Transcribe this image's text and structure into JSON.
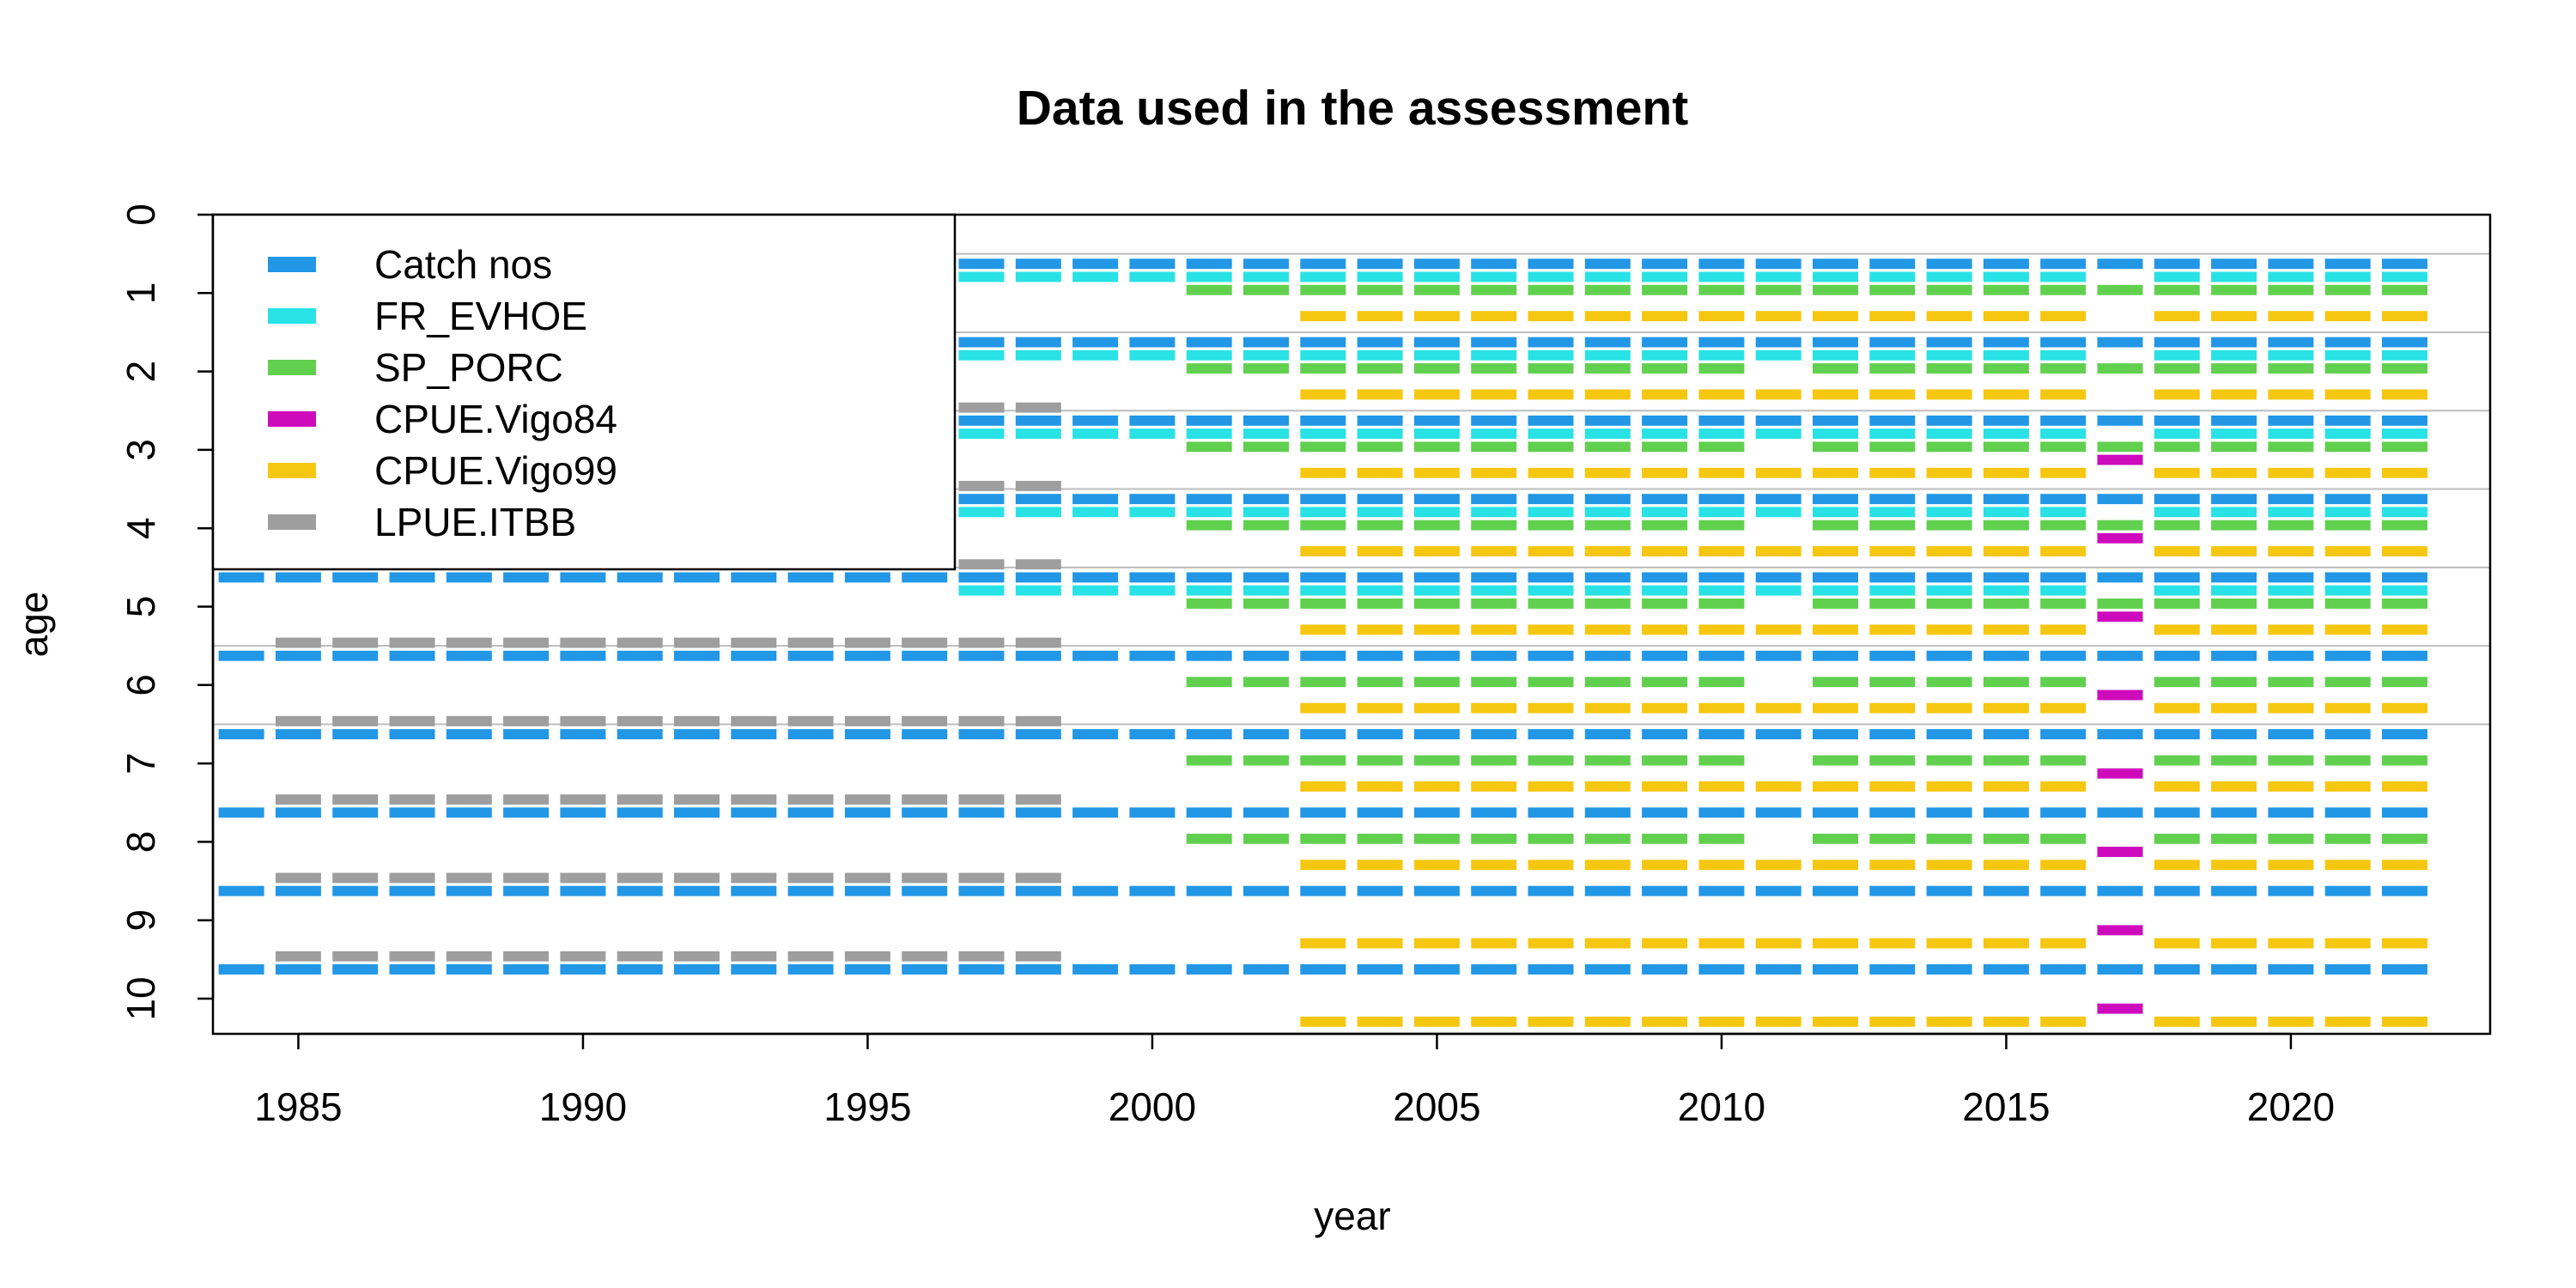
{
  "chart_data": {
    "type": "heatmap",
    "title": "Data used in the assessment",
    "xlabel": "year",
    "ylabel": "age",
    "xlim": [
      1983.5,
      2023.5
    ],
    "ylim": [
      0,
      10.5
    ],
    "x_ticks": [
      1985,
      1990,
      1995,
      2000,
      2005,
      2010,
      2015,
      2020
    ],
    "y_ticks": [
      0,
      1,
      2,
      3,
      4,
      5,
      6,
      7,
      8,
      9,
      10
    ],
    "legend_position": "top-left",
    "series": [
      {
        "name": "Catch nos",
        "color": "#2297E6",
        "blocks": [
          {
            "years": [
              1984,
              2022
            ],
            "ages": [
              1,
              10
            ]
          },
          {
            "years": [
              1984,
              1995
            ],
            "ages": [
              2,
              4
            ]
          },
          {
            "years": [
              1984,
              1993
            ],
            "ages": [
              1,
              1
            ]
          }
        ],
        "note_hidden_under_legend": false
      },
      {
        "name": "FR_EVHOE",
        "color": "#28E2E5",
        "blocks": [
          {
            "years": [
              1997,
              2016
            ],
            "ages": [
              1,
              5
            ]
          },
          {
            "years": [
              2018,
              2022
            ],
            "ages": [
              1,
              5
            ]
          }
        ]
      },
      {
        "name": "SP_PORC",
        "color": "#61D04F",
        "blocks": [
          {
            "years": [
              2001,
              2022
            ],
            "ages": [
              1,
              8
            ]
          }
        ]
      },
      {
        "name": "CPUE.Vigo84",
        "color": "#CD0BBC",
        "blocks": [
          {
            "years": [
              2017,
              2017
            ],
            "ages": [
              3,
              10
            ]
          }
        ]
      },
      {
        "name": "CPUE.Vigo99",
        "color": "#F5C710",
        "blocks": [
          {
            "years": [
              2003,
              2016
            ],
            "ages": [
              1,
              10
            ]
          },
          {
            "years": [
              2018,
              2022
            ],
            "ages": [
              1,
              10
            ]
          }
        ]
      },
      {
        "name": "LPUE.ITBB",
        "color": "#9E9E9E",
        "blocks": [
          {
            "years": [
              1985,
              1998
            ],
            "ages": [
              2,
              9
            ]
          }
        ]
      }
    ],
    "gaps": [
      {
        "series": "Catch nos",
        "year": 2017,
        "ages": []
      },
      {
        "series": "SP_PORC",
        "year": 2011,
        "ages": [
          2,
          3,
          4,
          5,
          6,
          7,
          8
        ]
      },
      {
        "series": "SP_PORC",
        "year": 2017,
        "ages": [
          6,
          7,
          8
        ]
      }
    ]
  }
}
